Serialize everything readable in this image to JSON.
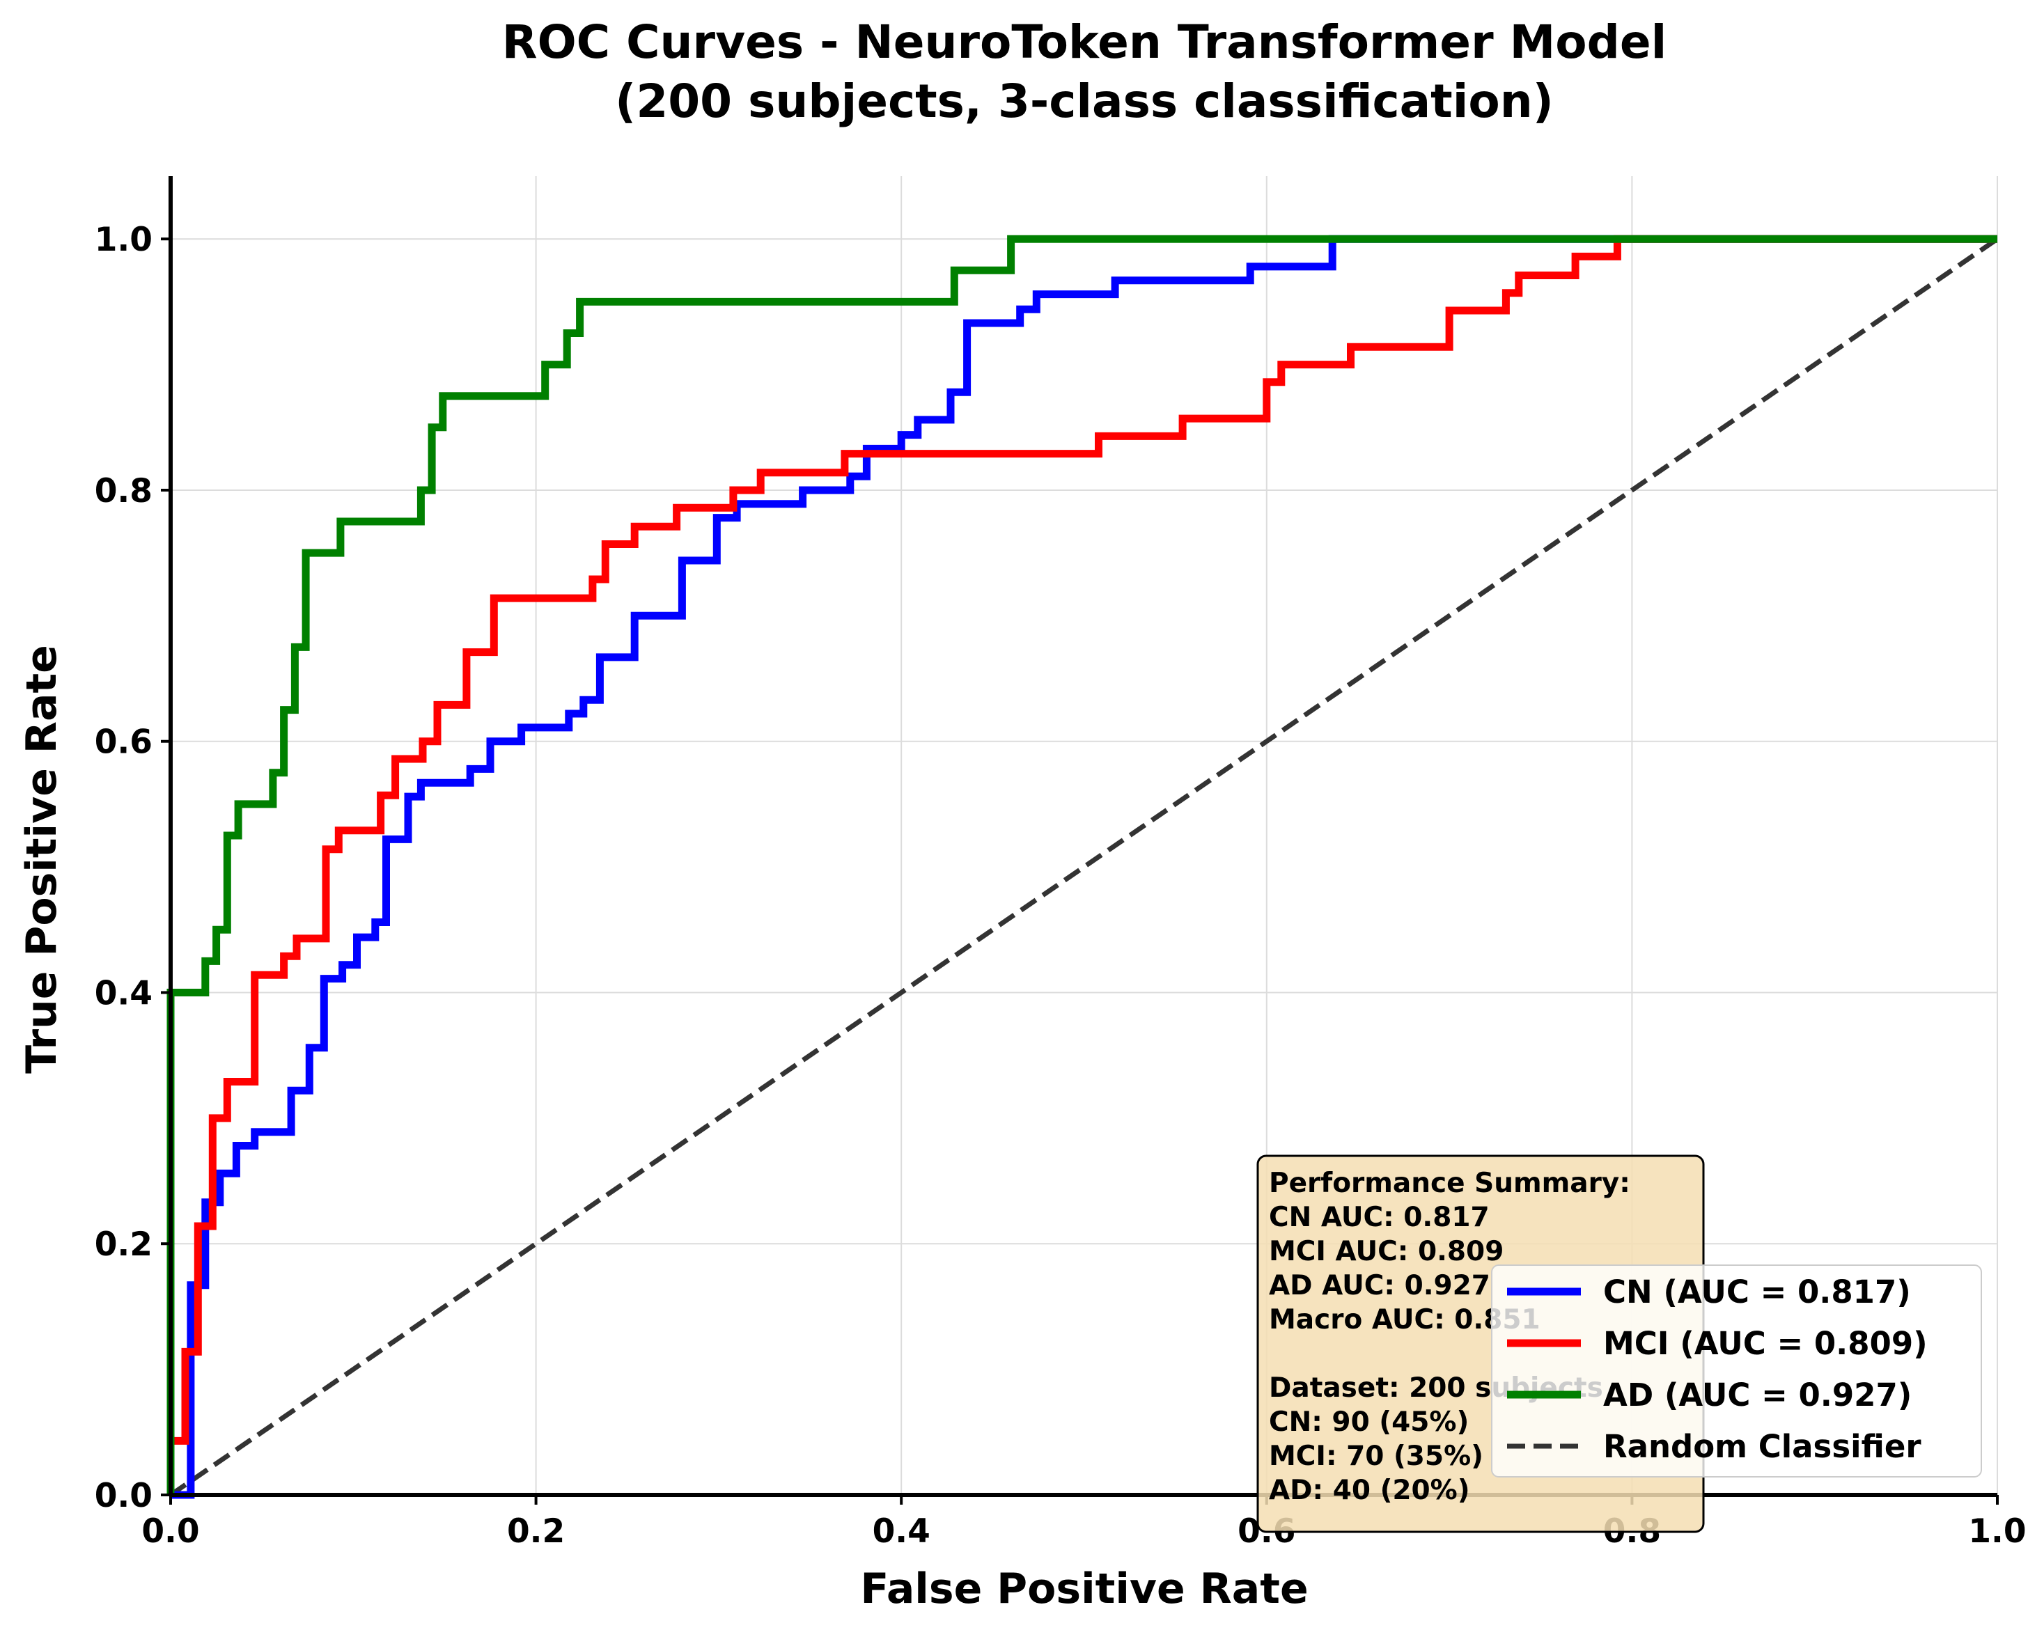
{
  "chart_data": {
    "type": "line",
    "title": "ROC Curves - NeuroToken Transformer Model",
    "subtitle": "(200 subjects, 3-class classification)",
    "xlabel": "False Positive Rate",
    "ylabel": "True Positive Rate",
    "xlim": [
      0.0,
      1.0
    ],
    "ylim": [
      0.0,
      1.05
    ],
    "xticks": [
      "0.0",
      "0.2",
      "0.4",
      "0.6",
      "0.8",
      "1.0"
    ],
    "yticks": [
      "0.0",
      "0.2",
      "0.4",
      "0.6",
      "0.8",
      "1.0"
    ],
    "grid": true,
    "legend_position": "lower-right",
    "series": [
      {
        "name": "CN (AUC = 0.817)",
        "color": "#0000ff",
        "x": [
          0,
          0.011,
          0.011,
          0.019,
          0.019,
          0.027,
          0.027,
          0.036,
          0.036,
          0.046,
          0.046,
          0.066,
          0.066,
          0.076,
          0.076,
          0.084,
          0.084,
          0.094,
          0.094,
          0.102,
          0.102,
          0.112,
          0.112,
          0.118,
          0.118,
          0.13,
          0.13,
          0.137,
          0.137,
          0.164,
          0.164,
          0.175,
          0.175,
          0.192,
          0.192,
          0.218,
          0.218,
          0.226,
          0.226,
          0.235,
          0.235,
          0.254,
          0.254,
          0.28,
          0.28,
          0.299,
          0.299,
          0.31,
          0.31,
          0.346,
          0.346,
          0.372,
          0.372,
          0.381,
          0.381,
          0.4,
          0.4,
          0.409,
          0.409,
          0.427,
          0.427,
          0.436,
          0.436,
          0.465,
          0.465,
          0.474,
          0.474,
          0.517,
          0.517,
          0.591,
          0.591,
          0.636,
          0.636,
          0.8,
          1.0
        ],
        "y": [
          0,
          0,
          0.167,
          0.167,
          0.233,
          0.233,
          0.256,
          0.256,
          0.278,
          0.278,
          0.289,
          0.289,
          0.322,
          0.322,
          0.356,
          0.356,
          0.411,
          0.411,
          0.422,
          0.422,
          0.444,
          0.444,
          0.456,
          0.456,
          0.522,
          0.522,
          0.556,
          0.556,
          0.567,
          0.567,
          0.578,
          0.578,
          0.6,
          0.6,
          0.611,
          0.611,
          0.622,
          0.622,
          0.633,
          0.633,
          0.667,
          0.667,
          0.7,
          0.7,
          0.744,
          0.744,
          0.778,
          0.778,
          0.789,
          0.789,
          0.8,
          0.8,
          0.811,
          0.811,
          0.833,
          0.833,
          0.844,
          0.844,
          0.856,
          0.856,
          0.878,
          0.878,
          0.933,
          0.933,
          0.944,
          0.944,
          0.956,
          0.956,
          0.967,
          0.967,
          0.978,
          0.978,
          1.0,
          1.0,
          1.0
        ]
      },
      {
        "name": "MCI (AUC = 0.809)",
        "color": "#ff0000",
        "x": [
          0,
          0.0,
          0.008,
          0.008,
          0.015,
          0.015,
          0.023,
          0.023,
          0.031,
          0.031,
          0.046,
          0.046,
          0.062,
          0.062,
          0.069,
          0.069,
          0.085,
          0.085,
          0.092,
          0.092,
          0.115,
          0.115,
          0.123,
          0.123,
          0.138,
          0.138,
          0.146,
          0.146,
          0.162,
          0.162,
          0.177,
          0.177,
          0.231,
          0.231,
          0.238,
          0.238,
          0.254,
          0.254,
          0.277,
          0.277,
          0.308,
          0.308,
          0.323,
          0.323,
          0.369,
          0.369,
          0.508,
          0.508,
          0.554,
          0.554,
          0.6,
          0.6,
          0.608,
          0.608,
          0.646,
          0.646,
          0.7,
          0.7,
          0.731,
          0.731,
          0.738,
          0.738,
          0.769,
          0.769,
          0.792,
          0.792,
          1.0
        ],
        "y": [
          0,
          0.043,
          0.043,
          0.114,
          0.114,
          0.214,
          0.214,
          0.3,
          0.3,
          0.329,
          0.329,
          0.414,
          0.414,
          0.429,
          0.429,
          0.443,
          0.443,
          0.514,
          0.514,
          0.529,
          0.529,
          0.557,
          0.557,
          0.586,
          0.586,
          0.6,
          0.6,
          0.629,
          0.629,
          0.671,
          0.671,
          0.714,
          0.714,
          0.729,
          0.729,
          0.757,
          0.757,
          0.771,
          0.771,
          0.786,
          0.786,
          0.8,
          0.8,
          0.814,
          0.814,
          0.829,
          0.829,
          0.843,
          0.843,
          0.857,
          0.857,
          0.886,
          0.886,
          0.9,
          0.9,
          0.914,
          0.914,
          0.943,
          0.943,
          0.957,
          0.957,
          0.971,
          0.971,
          0.986,
          0.986,
          1.0,
          1.0
        ]
      },
      {
        "name": "AD (AUC = 0.927)",
        "color": "#008000",
        "x": [
          0,
          0.0,
          0.019,
          0.019,
          0.025,
          0.025,
          0.031,
          0.031,
          0.037,
          0.037,
          0.056,
          0.056,
          0.062,
          0.062,
          0.068,
          0.068,
          0.074,
          0.074,
          0.093,
          0.093,
          0.137,
          0.137,
          0.143,
          0.143,
          0.149,
          0.149,
          0.205,
          0.205,
          0.217,
          0.217,
          0.224,
          0.224,
          0.429,
          0.429,
          0.46,
          0.46,
          1.0
        ],
        "y": [
          0,
          0.4,
          0.4,
          0.425,
          0.425,
          0.45,
          0.45,
          0.525,
          0.525,
          0.55,
          0.55,
          0.575,
          0.575,
          0.625,
          0.625,
          0.675,
          0.675,
          0.75,
          0.75,
          0.775,
          0.775,
          0.8,
          0.8,
          0.85,
          0.85,
          0.875,
          0.875,
          0.9,
          0.9,
          0.925,
          0.925,
          0.95,
          0.95,
          0.975,
          0.975,
          1.0,
          1.0
        ]
      },
      {
        "name": "Random Classifier",
        "color": "#333333",
        "dashed": true,
        "x": [
          0,
          1
        ],
        "y": [
          0,
          1
        ]
      }
    ],
    "summary_box": {
      "lines": [
        "Performance Summary:",
        "CN AUC: 0.817",
        "MCI AUC: 0.809",
        "AD AUC: 0.927",
        "Macro AUC: 0.851",
        "",
        "Dataset: 200 subjects",
        "CN: 90 (45%)",
        "MCI: 70 (35%)",
        "AD: 40 (20%)"
      ],
      "background": "#f5deb3"
    }
  }
}
